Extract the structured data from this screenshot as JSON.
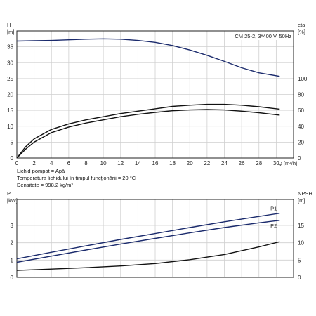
{
  "chart_data": [
    {
      "type": "line",
      "title": "CM 25-2, 3*400 V, 50Hz",
      "ylabel_left": "H",
      "ylabel_left_unit": "[m]",
      "ylabel_right": "eta",
      "ylabel_right_unit": "[%]",
      "xlabel": "Q [m³/h]",
      "xlim": [
        0,
        32
      ],
      "ylim_left": [
        0,
        40
      ],
      "ylim_right": [
        0,
        160
      ],
      "x_ticks": [
        0,
        2,
        4,
        6,
        8,
        10,
        12,
        14,
        16,
        18,
        20,
        22,
        24,
        26,
        28,
        30
      ],
      "y_ticks_left": [
        0,
        5,
        10,
        15,
        20,
        25,
        30,
        35
      ],
      "y_ticks_right": [
        0,
        20,
        40,
        60,
        80,
        100
      ],
      "grid": true,
      "series": [
        {
          "axis": "left",
          "color": "#1a2a6c",
          "points": [
            [
              0,
              36.8
            ],
            [
              2,
              36.9
            ],
            [
              4,
              37.0
            ],
            [
              6,
              37.2
            ],
            [
              8,
              37.4
            ],
            [
              10,
              37.5
            ],
            [
              12,
              37.4
            ],
            [
              14,
              37.0
            ],
            [
              16,
              36.4
            ],
            [
              18,
              35.4
            ],
            [
              20,
              34.0
            ],
            [
              22,
              32.3
            ],
            [
              24,
              30.4
            ],
            [
              26,
              28.4
            ],
            [
              28,
              26.8
            ],
            [
              30.4,
              25.7
            ]
          ]
        },
        {
          "axis": "right",
          "color": "#111111",
          "points": [
            [
              0,
              0
            ],
            [
              1,
              14
            ],
            [
              2,
              24
            ],
            [
              4,
              36
            ],
            [
              6,
              43
            ],
            [
              8,
              48
            ],
            [
              10,
              52
            ],
            [
              12,
              56
            ],
            [
              14,
              59
            ],
            [
              16,
              62
            ],
            [
              18,
              65
            ],
            [
              20,
              66.5
            ],
            [
              22,
              67.5
            ],
            [
              24,
              67.5
            ],
            [
              26,
              66.5
            ],
            [
              28,
              64.5
            ],
            [
              30.4,
              61.5
            ]
          ]
        },
        {
          "axis": "right",
          "color": "#111111",
          "points": [
            [
              0,
              0
            ],
            [
              1,
              11
            ],
            [
              2,
              20
            ],
            [
              4,
              32
            ],
            [
              6,
              39
            ],
            [
              8,
              44
            ],
            [
              10,
              48
            ],
            [
              12,
              52
            ],
            [
              14,
              55
            ],
            [
              16,
              57.5
            ],
            [
              18,
              59.5
            ],
            [
              20,
              60.5
            ],
            [
              22,
              61
            ],
            [
              24,
              60.5
            ],
            [
              26,
              59
            ],
            [
              28,
              57
            ],
            [
              30.4,
              54
            ]
          ]
        }
      ]
    },
    {
      "type": "line",
      "ylabel_left": "P",
      "ylabel_left_unit": "[kW]",
      "ylabel_right": "NPSH",
      "ylabel_right_unit": "[m]",
      "xlim": [
        0,
        32
      ],
      "ylim_left": [
        0,
        4.5
      ],
      "ylim_right": [
        0,
        22.5
      ],
      "x_ticks": [
        0,
        2,
        4,
        6,
        8,
        10,
        12,
        14,
        16,
        18,
        20,
        22,
        24,
        26,
        28,
        30
      ],
      "y_ticks_left": [
        0,
        1,
        2,
        3
      ],
      "y_ticks_right": [
        0,
        5,
        10,
        15
      ],
      "grid": true,
      "series": [
        {
          "name": "P1",
          "axis": "left",
          "color": "#1a2a6c",
          "points": [
            [
              0,
              1.07
            ],
            [
              4,
              1.45
            ],
            [
              8,
              1.82
            ],
            [
              12,
              2.19
            ],
            [
              16,
              2.53
            ],
            [
              20,
              2.88
            ],
            [
              24,
              3.21
            ],
            [
              28,
              3.52
            ],
            [
              30.4,
              3.7
            ]
          ]
        },
        {
          "name": "P2",
          "axis": "left",
          "color": "#1a2a6c",
          "points": [
            [
              0,
              0.87
            ],
            [
              4,
              1.23
            ],
            [
              8,
              1.58
            ],
            [
              12,
              1.92
            ],
            [
              16,
              2.25
            ],
            [
              20,
              2.57
            ],
            [
              24,
              2.88
            ],
            [
              28,
              3.15
            ],
            [
              30.4,
              3.29
            ]
          ]
        },
        {
          "axis": "right",
          "color": "#111111",
          "points": [
            [
              0,
              2.0
            ],
            [
              4,
              2.4
            ],
            [
              8,
              2.8
            ],
            [
              12,
              3.3
            ],
            [
              16,
              4.0
            ],
            [
              20,
              5.1
            ],
            [
              24,
              6.6
            ],
            [
              28,
              8.8
            ],
            [
              30.4,
              10.3
            ]
          ]
        }
      ]
    }
  ],
  "info_lines": [
    "Lichid pompat = Apă",
    "Temperatura lichidului în timpul funcţionării = 20 °C",
    "Densitate = 998.2 kg/m³"
  ]
}
